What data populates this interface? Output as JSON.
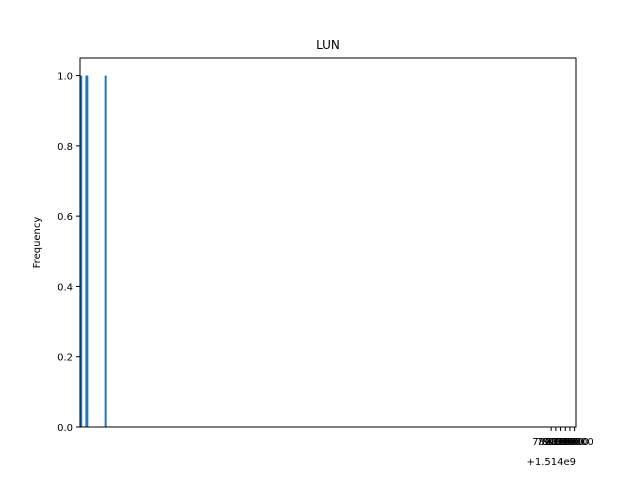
{
  "chart_data": {
    "type": "bar",
    "title": "LUN",
    "xlabel": "",
    "ylabel": "Frequency",
    "x_offset_label": "+1.514e9",
    "x_offset": 1514000000,
    "xlim": [
      1513775600,
      1514832900
    ],
    "ylim": [
      0,
      1.05
    ],
    "x_ticks": [
      780000,
      790000,
      800000,
      810000,
      820000,
      830000
    ],
    "x_tick_labels": [
      "780000",
      "790000",
      "800000",
      "810000",
      "820000",
      "830000"
    ],
    "y_ticks": [
      0.0,
      0.2,
      0.4,
      0.6,
      0.8,
      1.0
    ],
    "y_tick_labels": [
      "0.0",
      "0.2",
      "0.4",
      "0.6",
      "0.8",
      "1.0"
    ],
    "bar_color": "#1f77b4",
    "grid": false,
    "legend": "none",
    "bars": [
      {
        "x": 1513778200,
        "value": 1
      },
      {
        "x": 1513789250,
        "value": 1
      },
      {
        "x": 1513791250,
        "value": 1
      },
      {
        "x": 1513830300,
        "value": 1
      }
    ]
  }
}
